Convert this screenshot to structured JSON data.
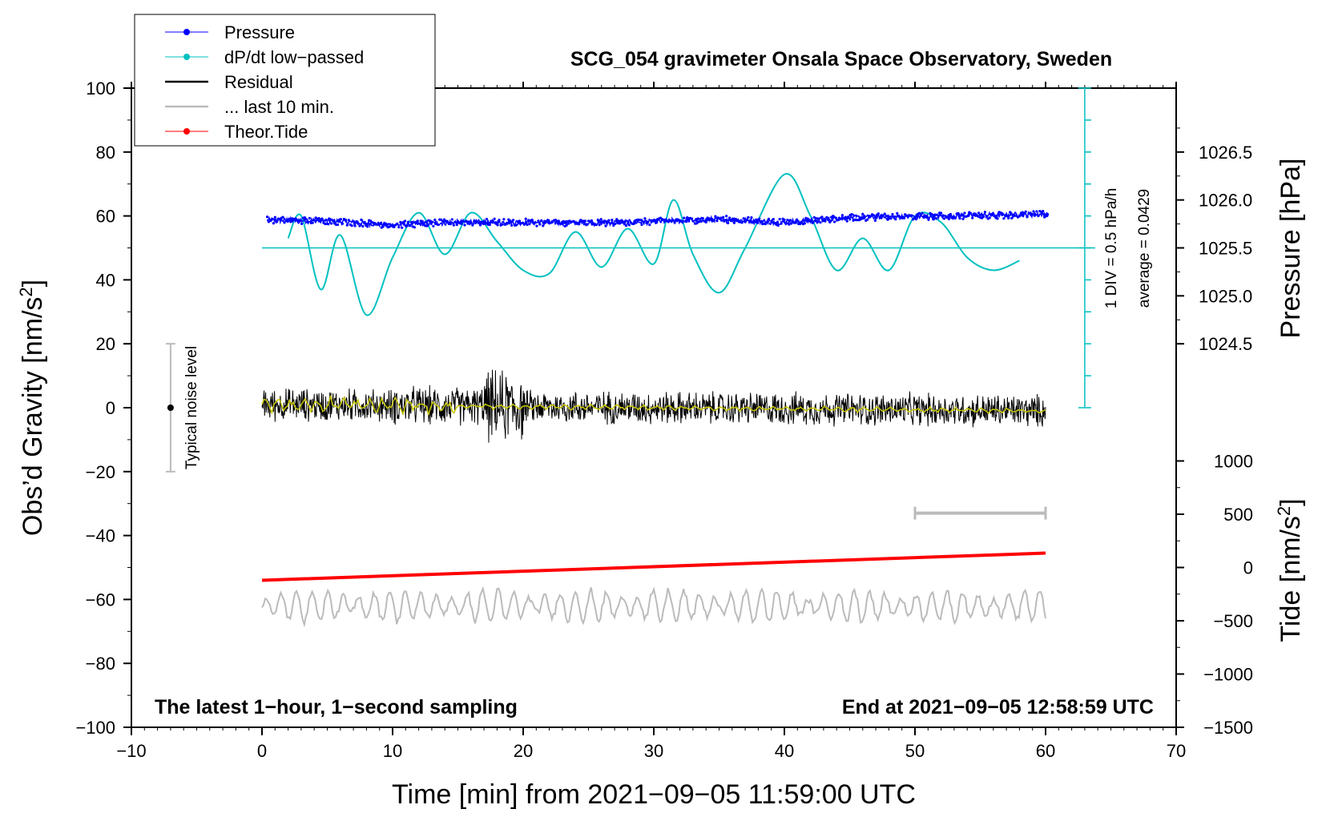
{
  "chart_data": {
    "type": "line",
    "title": "SCG_054 gravimeter Onsala Space Observatory, Sweden",
    "xlabel": "Time [min] from 2021−09−05 11:59:00 UTC",
    "ylabel_left": "Obs’d Gravity [nm/s",
    "ylabel_left_sup": "2",
    "ylabel_left_end": "]",
    "ylabel_right_pressure": "Pressure [hPa]",
    "ylabel_right_tide": "Tide [nm/s",
    "ylabel_right_tide_sup": "2",
    "ylabel_right_tide_end": "]",
    "xlim": [
      -10,
      70
    ],
    "ylim": [
      -100,
      100
    ],
    "x_ticks": [
      -10,
      0,
      10,
      20,
      30,
      40,
      50,
      60,
      70
    ],
    "x_tick_labels": [
      "−10",
      "0",
      "10",
      "20",
      "30",
      "40",
      "50",
      "60",
      "70"
    ],
    "y_ticks": [
      -100,
      -80,
      -60,
      -40,
      -20,
      0,
      20,
      40,
      60,
      80,
      100
    ],
    "y_tick_labels": [
      "−100",
      "−80",
      "−60",
      "−40",
      "−20",
      "0",
      "20",
      "40",
      "60",
      "80",
      "100"
    ],
    "pressure_ticks": [
      1024.5,
      1025.0,
      1025.5,
      1026.0,
      1026.5
    ],
    "pressure_tick_labels": [
      "1024.5",
      "1025.0",
      "1025.5",
      "1026.0",
      "1026.5"
    ],
    "pressure_scale": {
      "value_at": 1025.5,
      "gravity_at": 50,
      "per_hpa": 30
    },
    "tide_ticks": [
      -1500,
      -1000,
      -500,
      0,
      500,
      1000
    ],
    "tide_tick_labels": [
      "−1500",
      "−1000",
      "−500",
      "0",
      "500",
      "1000"
    ],
    "tide_scale": {
      "value_at": 0,
      "gravity_at": -50,
      "per_unit": 0.033333
    },
    "legend": [
      {
        "label": "Pressure",
        "color": "#0000ff",
        "marker": true
      },
      {
        "label": "dP/dt low−passed",
        "color": "#00c0c0",
        "marker": true
      },
      {
        "label": "Residual",
        "color": "#000000",
        "marker": false
      },
      {
        "label": "... last 10 min.",
        "color": "#bbbbbb",
        "marker": false
      },
      {
        "label": "Theor.Tide",
        "color": "#ff0000",
        "marker": true
      }
    ],
    "series": [
      {
        "name": "Pressure",
        "color": "#0000ff",
        "x": [
          0,
          5,
          10,
          15,
          20,
          25,
          30,
          35,
          40,
          45,
          50,
          55,
          60
        ],
        "values": [
          58.7,
          58.5,
          57.2,
          58.0,
          58.0,
          57.8,
          58.2,
          59.0,
          58.0,
          59.5,
          59.8,
          60.2,
          60.5
        ]
      },
      {
        "name": "dP/dt low−passed",
        "color": "#00c0c0",
        "x": [
          2,
          3,
          4.5,
          6,
          8,
          10,
          12,
          14,
          16,
          18,
          20,
          22,
          24,
          26,
          28,
          30,
          31.5,
          33,
          35,
          37,
          40,
          42,
          44,
          46,
          48,
          50,
          52,
          54,
          56,
          58
        ],
        "values": [
          53,
          60,
          37,
          54,
          29,
          47,
          61,
          48,
          61,
          52,
          43,
          42,
          55,
          44,
          56,
          45,
          65,
          48,
          36,
          50,
          73,
          60,
          43,
          53,
          43,
          60,
          58,
          47,
          43,
          46
        ]
      },
      {
        "name": "Residual",
        "color": "#000000",
        "x_range": [
          0,
          60
        ],
        "center": 0,
        "amplitude": 6
      },
      {
        "name": "... last 10 min.",
        "color": "#bbbbbb",
        "x_range": [
          0,
          60
        ],
        "center": -62,
        "amplitude": 5
      },
      {
        "name": "Theor.Tide",
        "color": "#ff0000",
        "x": [
          0,
          60
        ],
        "values": [
          -54,
          -45.5
        ]
      }
    ],
    "dpdt_baseline": 50,
    "annotations": {
      "noise_label": "Typical noise level",
      "noise_range": [
        -20,
        20
      ],
      "noise_x": -7,
      "div_label": "1 DIV = 0.5 hPa/h",
      "avg_label": "average = 0.0429",
      "window_bar_x": [
        50,
        60
      ],
      "window_bar_y": -33,
      "bottom_left": "The latest 1−hour, 1−second sampling",
      "bottom_right": "End at 2021−09−05 12:58:59 UTC"
    }
  }
}
